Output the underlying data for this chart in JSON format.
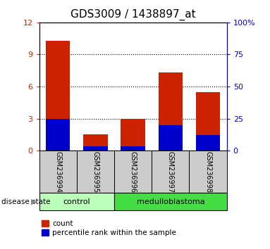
{
  "title": "GDS3009 / 1438897_at",
  "samples": [
    "GSM236994",
    "GSM236995",
    "GSM236996",
    "GSM236997",
    "GSM236998"
  ],
  "count_values": [
    10.3,
    1.5,
    3.0,
    7.3,
    5.5
  ],
  "percentile_values": [
    25,
    3.5,
    3.5,
    20,
    12
  ],
  "left_ylim": [
    0,
    12
  ],
  "right_ylim": [
    0,
    100
  ],
  "left_yticks": [
    0,
    3,
    6,
    9,
    12
  ],
  "right_yticks": [
    0,
    25,
    50,
    75,
    100
  ],
  "right_yticklabels": [
    "0",
    "25",
    "50",
    "75",
    "100%"
  ],
  "bar_color_red": "#cc2200",
  "bar_color_blue": "#0000cc",
  "control_label": "control",
  "medulloblastoma_label": "medulloblastoma",
  "disease_state_label": "disease state",
  "legend_count": "count",
  "legend_percentile": "percentile rank within the sample",
  "control_color": "#bbffbb",
  "medulloblastoma_color": "#44dd44",
  "sample_box_color": "#cccccc",
  "title_fontsize": 11,
  "tick_fontsize": 8,
  "bar_width": 0.65
}
